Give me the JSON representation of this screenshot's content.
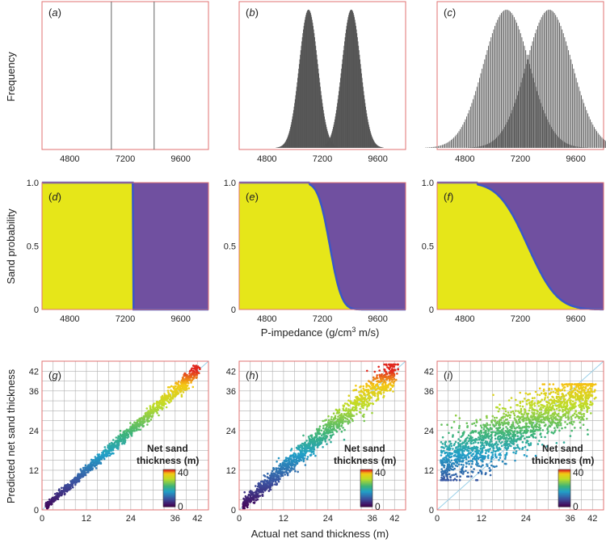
{
  "figure": {
    "row1_ylabel": "Frequency",
    "row2_ylabel": "Sand probability",
    "row2_xlabel": "P-impedance (g/cm",
    "row2_xlabel_sup": "3",
    "row2_xlabel_tail": " m/s)",
    "row3_ylabel": "Predicted net sand thickness",
    "row3_xlabel": "Actual net sand thickness (m)",
    "legend_title_line1": "Net sand",
    "legend_title_line2": "thickness (m)",
    "legend_max_label": "40",
    "legend_min_label": "0",
    "colors": {
      "frame": "#e07070",
      "yellow": "#e6e619",
      "purple": "#7050a0",
      "boundary": "#3a56c8",
      "hist": "#555555",
      "grid": "#b0b0b0",
      "refline": "#9ad0e8"
    }
  },
  "chart_data": [
    {
      "id": "a",
      "panel_label": "a",
      "type": "bar",
      "xlim": [
        3600,
        10800
      ],
      "xticks": [
        {
          "value": 4800,
          "label": "4800"
        },
        {
          "value": 7200,
          "label": "7200"
        },
        {
          "value": 9600,
          "label": "9600"
        }
      ],
      "series": [
        {
          "mean": 6600,
          "sd": 0
        },
        {
          "mean": 8450,
          "sd": 0
        }
      ]
    },
    {
      "id": "b",
      "panel_label": "b",
      "type": "bar",
      "xlim": [
        3600,
        10800
      ],
      "xticks": [
        {
          "value": 4800,
          "label": "4800"
        },
        {
          "value": 7200,
          "label": "7200"
        },
        {
          "value": 9600,
          "label": "9600"
        }
      ],
      "series": [
        {
          "mean": 6600,
          "sd": 400
        },
        {
          "mean": 8450,
          "sd": 400
        }
      ]
    },
    {
      "id": "c",
      "panel_label": "c",
      "type": "bar",
      "xlim": [
        3600,
        10800
      ],
      "xticks": [
        {
          "value": 4800,
          "label": "4800"
        },
        {
          "value": 7200,
          "label": "7200"
        },
        {
          "value": 9600,
          "label": "9600"
        }
      ],
      "series": [
        {
          "mean": 6600,
          "sd": 1000
        },
        {
          "mean": 8450,
          "sd": 1000
        }
      ]
    },
    {
      "id": "d",
      "panel_label": "d",
      "type": "area",
      "xlim": [
        3600,
        10800
      ],
      "ylim": [
        0,
        1
      ],
      "yticks": [
        {
          "value": 0,
          "label": "0"
        },
        {
          "value": 0.5,
          "label": "0.5"
        },
        {
          "value": 1,
          "label": "1.0"
        }
      ],
      "xticks": [
        {
          "value": 4800,
          "label": "4800"
        },
        {
          "value": 7200,
          "label": "7200"
        },
        {
          "value": 9600,
          "label": "9600"
        }
      ],
      "sd": 0,
      "threshold": 7525
    },
    {
      "id": "e",
      "panel_label": "e",
      "type": "area",
      "xlim": [
        3600,
        10800
      ],
      "ylim": [
        0,
        1
      ],
      "yticks": [
        {
          "value": 0,
          "label": "0"
        },
        {
          "value": 0.5,
          "label": "0.5"
        },
        {
          "value": 1,
          "label": "1.0"
        }
      ],
      "xticks": [
        {
          "value": 4800,
          "label": "4800"
        },
        {
          "value": 7200,
          "label": "7200"
        },
        {
          "value": 9600,
          "label": "9600"
        }
      ],
      "sd": 400,
      "threshold": 7525
    },
    {
      "id": "f",
      "panel_label": "f",
      "type": "area",
      "xlim": [
        3600,
        10800
      ],
      "ylim": [
        0,
        1
      ],
      "yticks": [
        {
          "value": 0,
          "label": "0"
        },
        {
          "value": 0.5,
          "label": "0.5"
        },
        {
          "value": 1,
          "label": "1.0"
        }
      ],
      "xticks": [
        {
          "value": 4800,
          "label": "4800"
        },
        {
          "value": 7200,
          "label": "7200"
        },
        {
          "value": 9600,
          "label": "9600"
        }
      ],
      "sd": 1000,
      "threshold": 7525
    },
    {
      "id": "g",
      "panel_label": "g",
      "type": "scatter",
      "xlim": [
        0,
        45
      ],
      "ylim": [
        0,
        45
      ],
      "ticks": [
        {
          "value": 0,
          "label": "0"
        },
        {
          "value": 12,
          "label": "12"
        },
        {
          "value": 24,
          "label": "24"
        },
        {
          "value": 36,
          "label": "36"
        },
        {
          "value": 42,
          "label": "42"
        }
      ],
      "points": 1200,
      "noise": 0.8,
      "slope": 1.0,
      "offset": 0.0
    },
    {
      "id": "h",
      "panel_label": "h",
      "type": "scatter",
      "xlim": [
        0,
        45
      ],
      "ylim": [
        0,
        45
      ],
      "ticks": [
        {
          "value": 0,
          "label": "0"
        },
        {
          "value": 12,
          "label": "12"
        },
        {
          "value": 24,
          "label": "24"
        },
        {
          "value": 36,
          "label": "36"
        },
        {
          "value": 42,
          "label": "42"
        }
      ],
      "points": 1400,
      "noise": 1.6,
      "slope": 0.98,
      "offset": 0.5
    },
    {
      "id": "i",
      "panel_label": "i",
      "type": "scatter",
      "xlim": [
        0,
        45
      ],
      "ylim": [
        0,
        45
      ],
      "ticks": [
        {
          "value": 0,
          "label": "0"
        },
        {
          "value": 12,
          "label": "12"
        },
        {
          "value": 24,
          "label": "24"
        },
        {
          "value": 36,
          "label": "36"
        },
        {
          "value": 42,
          "label": "42"
        }
      ],
      "points": 1800,
      "noise": 4.0,
      "slope": 0.55,
      "offset": 13.0
    }
  ]
}
